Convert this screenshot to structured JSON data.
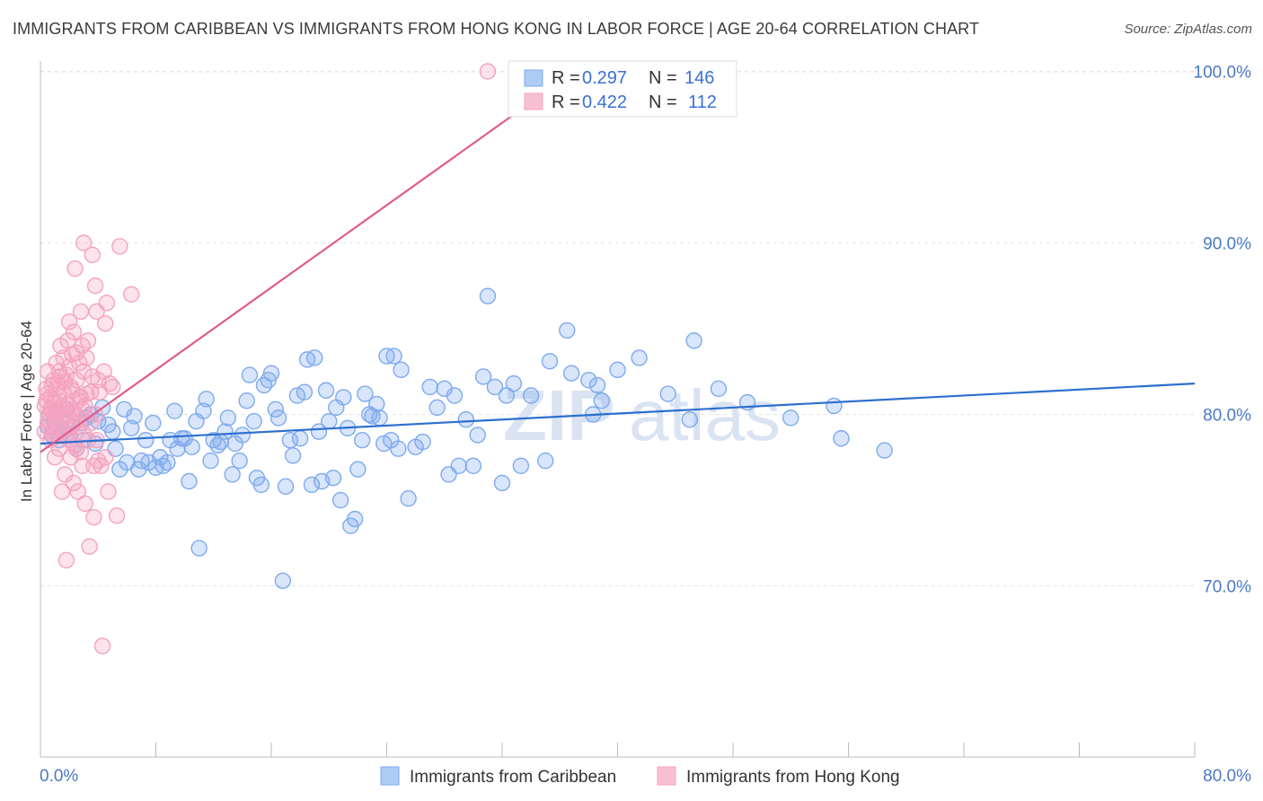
{
  "header": {
    "title": "IMMIGRANTS FROM CARIBBEAN VS IMMIGRANTS FROM HONG KONG IN LABOR FORCE | AGE 20-64 CORRELATION CHART",
    "source": "Source: ZipAtlas.com"
  },
  "watermark": {
    "zip": "ZIP",
    "atlas": "atlas"
  },
  "legend": {
    "rows": [
      {
        "r_label": "R = ",
        "r_value": "0.297",
        "n_label": "N = ",
        "n_value": "146"
      },
      {
        "r_label": "R = ",
        "r_value": "0.422",
        "n_label": "N = ",
        "n_value": "112"
      }
    ]
  },
  "chart_data": {
    "type": "scatter",
    "title": "IMMIGRANTS FROM CARIBBEAN VS IMMIGRANTS FROM HONG KONG IN LABOR FORCE | AGE 20-64 CORRELATION CHART",
    "xlabel": "",
    "ylabel": "In Labor Force | Age 20-64",
    "xlim": [
      0,
      80
    ],
    "ylim": [
      60,
      103
    ],
    "x_tick_labels": [
      "0.0%",
      "80.0%"
    ],
    "y_ticks": [
      70,
      80,
      90,
      100
    ],
    "y_tick_labels": [
      "70.0%",
      "80.0%",
      "90.0%",
      "100.0%"
    ],
    "grid": true,
    "legend_position": "top-center",
    "series": [
      {
        "name": "Immigrants from Caribbean",
        "color": "#7eaaee",
        "line_color": "#2c6fcf",
        "trend": {
          "x": [
            0,
            80
          ],
          "y": [
            78.3,
            81.8
          ]
        },
        "points": [
          [
            0.5,
            79.3
          ],
          [
            0.6,
            80.0
          ],
          [
            0.8,
            78.8
          ],
          [
            1.0,
            79.5
          ],
          [
            1.2,
            80.2
          ],
          [
            1.3,
            78.5
          ],
          [
            1.5,
            79.8
          ],
          [
            1.6,
            79.0
          ],
          [
            1.8,
            80.3
          ],
          [
            2.0,
            78.8
          ],
          [
            2.2,
            79.3
          ],
          [
            2.5,
            78.0
          ],
          [
            2.8,
            79.5
          ],
          [
            3.0,
            78.5
          ],
          [
            3.2,
            79.8
          ],
          [
            3.5,
            80.0
          ],
          [
            3.8,
            78.3
          ],
          [
            4.0,
            79.6
          ],
          [
            4.3,
            80.4
          ],
          [
            4.7,
            79.4
          ],
          [
            5.0,
            79.0
          ],
          [
            5.2,
            78.0
          ],
          [
            5.5,
            76.8
          ],
          [
            5.8,
            80.3
          ],
          [
            6.0,
            77.2
          ],
          [
            6.3,
            79.2
          ],
          [
            6.5,
            79.9
          ],
          [
            6.8,
            76.8
          ],
          [
            7.0,
            77.3
          ],
          [
            7.3,
            78.5
          ],
          [
            7.5,
            77.2
          ],
          [
            7.8,
            79.5
          ],
          [
            8.0,
            76.9
          ],
          [
            8.3,
            77.5
          ],
          [
            8.5,
            77.0
          ],
          [
            8.8,
            77.2
          ],
          [
            9.0,
            78.5
          ],
          [
            9.3,
            80.2
          ],
          [
            9.5,
            78.0
          ],
          [
            9.8,
            78.6
          ],
          [
            10.0,
            78.6
          ],
          [
            10.3,
            76.1
          ],
          [
            10.5,
            78.1
          ],
          [
            10.8,
            79.6
          ],
          [
            11.0,
            72.2
          ],
          [
            11.3,
            80.2
          ],
          [
            11.5,
            80.9
          ],
          [
            11.8,
            77.3
          ],
          [
            12.0,
            78.5
          ],
          [
            12.3,
            78.2
          ],
          [
            12.5,
            78.4
          ],
          [
            12.8,
            79.0
          ],
          [
            13.0,
            79.8
          ],
          [
            13.3,
            76.5
          ],
          [
            13.5,
            78.3
          ],
          [
            13.8,
            77.3
          ],
          [
            14.0,
            78.8
          ],
          [
            14.3,
            80.8
          ],
          [
            14.5,
            82.3
          ],
          [
            14.8,
            79.6
          ],
          [
            15.0,
            76.3
          ],
          [
            15.3,
            75.9
          ],
          [
            15.5,
            81.7
          ],
          [
            15.8,
            82.0
          ],
          [
            16.0,
            82.4
          ],
          [
            16.3,
            80.3
          ],
          [
            16.5,
            79.8
          ],
          [
            16.8,
            70.3
          ],
          [
            17.0,
            75.8
          ],
          [
            17.3,
            78.5
          ],
          [
            17.5,
            77.6
          ],
          [
            17.8,
            81.1
          ],
          [
            18.0,
            78.6
          ],
          [
            18.3,
            81.3
          ],
          [
            18.5,
            83.2
          ],
          [
            18.8,
            75.9
          ],
          [
            19.0,
            83.3
          ],
          [
            19.3,
            79.0
          ],
          [
            19.5,
            76.1
          ],
          [
            19.8,
            81.4
          ],
          [
            20.0,
            79.6
          ],
          [
            20.3,
            76.3
          ],
          [
            20.5,
            80.4
          ],
          [
            20.8,
            75.0
          ],
          [
            21.0,
            81.0
          ],
          [
            21.3,
            79.2
          ],
          [
            21.5,
            73.5
          ],
          [
            21.8,
            73.9
          ],
          [
            22.0,
            76.8
          ],
          [
            22.3,
            78.5
          ],
          [
            22.5,
            81.2
          ],
          [
            22.8,
            80.0
          ],
          [
            23.0,
            79.9
          ],
          [
            23.3,
            80.6
          ],
          [
            23.5,
            79.8
          ],
          [
            23.8,
            78.3
          ],
          [
            24.0,
            83.4
          ],
          [
            24.3,
            78.5
          ],
          [
            24.5,
            83.4
          ],
          [
            24.8,
            78.0
          ],
          [
            25.0,
            82.6
          ],
          [
            25.5,
            75.1
          ],
          [
            26.0,
            78.1
          ],
          [
            26.5,
            78.4
          ],
          [
            27.0,
            81.6
          ],
          [
            27.5,
            80.4
          ],
          [
            28.0,
            81.5
          ],
          [
            28.3,
            76.5
          ],
          [
            28.7,
            81.1
          ],
          [
            29.0,
            77.0
          ],
          [
            29.5,
            79.7
          ],
          [
            30.0,
            77.0
          ],
          [
            30.3,
            78.8
          ],
          [
            30.7,
            82.2
          ],
          [
            31.0,
            86.9
          ],
          [
            31.5,
            81.6
          ],
          [
            32.0,
            76.0
          ],
          [
            32.3,
            81.1
          ],
          [
            32.8,
            81.8
          ],
          [
            33.3,
            77.0
          ],
          [
            34.0,
            81.1
          ],
          [
            35.0,
            77.3
          ],
          [
            35.3,
            83.1
          ],
          [
            36.5,
            84.9
          ],
          [
            36.8,
            82.4
          ],
          [
            38.0,
            82.0
          ],
          [
            38.3,
            80.0
          ],
          [
            38.6,
            81.7
          ],
          [
            38.9,
            80.8
          ],
          [
            40.0,
            82.6
          ],
          [
            41.5,
            83.3
          ],
          [
            43.5,
            81.2
          ],
          [
            45.0,
            79.7
          ],
          [
            45.3,
            84.3
          ],
          [
            47.0,
            81.5
          ],
          [
            49.0,
            80.7
          ],
          [
            52.0,
            79.8
          ],
          [
            55.0,
            80.5
          ],
          [
            55.5,
            78.6
          ],
          [
            58.5,
            77.9
          ]
        ]
      },
      {
        "name": "Immigrants from Hong Kong",
        "color": "#f4a3bf",
        "line_color": "#e05b8c",
        "trend": {
          "x": [
            0,
            37
          ],
          "y": [
            77.8,
            100.0
          ]
        },
        "points": [
          [
            0.3,
            80.5
          ],
          [
            0.4,
            81.5
          ],
          [
            0.5,
            79.5
          ],
          [
            0.5,
            82.5
          ],
          [
            0.6,
            80.0
          ],
          [
            0.7,
            78.5
          ],
          [
            0.7,
            81.0
          ],
          [
            0.8,
            80.3
          ],
          [
            0.8,
            79.0
          ],
          [
            0.9,
            82.0
          ],
          [
            1.0,
            80.7
          ],
          [
            1.0,
            77.5
          ],
          [
            1.1,
            83.0
          ],
          [
            1.1,
            79.8
          ],
          [
            1.2,
            81.8
          ],
          [
            1.2,
            80.2
          ],
          [
            1.3,
            78.0
          ],
          [
            1.3,
            82.5
          ],
          [
            1.4,
            79.2
          ],
          [
            1.4,
            84.0
          ],
          [
            1.5,
            80.5
          ],
          [
            1.5,
            75.5
          ],
          [
            1.6,
            83.3
          ],
          [
            1.6,
            81.3
          ],
          [
            1.7,
            76.5
          ],
          [
            1.7,
            79.8
          ],
          [
            1.8,
            82.3
          ],
          [
            1.8,
            71.5
          ],
          [
            1.9,
            80.0
          ],
          [
            1.9,
            84.3
          ],
          [
            2.0,
            78.5
          ],
          [
            2.0,
            85.4
          ],
          [
            2.1,
            81.6
          ],
          [
            2.1,
            77.5
          ],
          [
            2.2,
            83.5
          ],
          [
            2.2,
            80.2
          ],
          [
            2.3,
            76.0
          ],
          [
            2.3,
            84.8
          ],
          [
            2.4,
            79.5
          ],
          [
            2.4,
            88.5
          ],
          [
            2.5,
            82.0
          ],
          [
            2.5,
            78.0
          ],
          [
            2.6,
            80.8
          ],
          [
            2.6,
            75.5
          ],
          [
            2.7,
            83.0
          ],
          [
            2.7,
            79.3
          ],
          [
            2.8,
            86.0
          ],
          [
            2.8,
            81.0
          ],
          [
            2.9,
            77.0
          ],
          [
            2.9,
            84.0
          ],
          [
            3.0,
            82.5
          ],
          [
            3.0,
            90.0
          ],
          [
            3.1,
            80.5
          ],
          [
            3.1,
            74.8
          ],
          [
            3.2,
            83.3
          ],
          [
            3.2,
            81.2
          ],
          [
            3.3,
            78.5
          ],
          [
            3.3,
            84.3
          ],
          [
            3.4,
            72.3
          ],
          [
            3.5,
            81.3
          ],
          [
            3.5,
            79.5
          ],
          [
            3.6,
            89.3
          ],
          [
            3.6,
            82.2
          ],
          [
            3.7,
            77.0
          ],
          [
            3.7,
            74.0
          ],
          [
            3.8,
            87.5
          ],
          [
            3.8,
            80.0
          ],
          [
            3.9,
            86.0
          ],
          [
            3.9,
            78.5
          ],
          [
            4.0,
            82.0
          ],
          [
            4.0,
            77.3
          ],
          [
            4.1,
            81.3
          ],
          [
            4.2,
            77.0
          ],
          [
            4.3,
            66.5
          ],
          [
            4.4,
            82.5
          ],
          [
            4.5,
            85.3
          ],
          [
            4.5,
            77.5
          ],
          [
            4.6,
            86.5
          ],
          [
            4.7,
            75.5
          ],
          [
            4.8,
            81.8
          ],
          [
            5.0,
            81.6
          ],
          [
            5.3,
            74.1
          ],
          [
            5.5,
            89.8
          ],
          [
            6.3,
            87.0
          ],
          [
            31.0,
            100.0
          ],
          [
            0.3,
            79.0
          ],
          [
            0.4,
            80.8
          ],
          [
            0.5,
            81.2
          ],
          [
            0.6,
            79.6
          ],
          [
            0.7,
            80.3
          ],
          [
            0.8,
            81.7
          ],
          [
            0.9,
            78.8
          ],
          [
            1.0,
            80.0
          ],
          [
            1.1,
            81.5
          ],
          [
            1.2,
            79.4
          ],
          [
            1.3,
            80.8
          ],
          [
            1.4,
            82.2
          ],
          [
            1.5,
            79.0
          ],
          [
            1.6,
            80.4
          ],
          [
            1.7,
            81.9
          ],
          [
            1.8,
            78.8
          ],
          [
            1.9,
            80.6
          ],
          [
            2.0,
            82.8
          ],
          [
            2.1,
            79.2
          ],
          [
            2.2,
            81.4
          ],
          [
            2.3,
            80.0
          ],
          [
            2.4,
            78.2
          ],
          [
            2.5,
            83.6
          ],
          [
            2.6,
            79.9
          ],
          [
            2.7,
            81.0
          ],
          [
            2.8,
            77.8
          ],
          [
            2.9,
            80.3
          ],
          [
            3.0,
            78.9
          ]
        ]
      }
    ]
  },
  "bottom_legend": [
    {
      "label": "Immigrants from Caribbean",
      "color": "#aecbf4"
    },
    {
      "label": "Immigrants from Hong Kong",
      "color": "#f8bfd2"
    }
  ]
}
